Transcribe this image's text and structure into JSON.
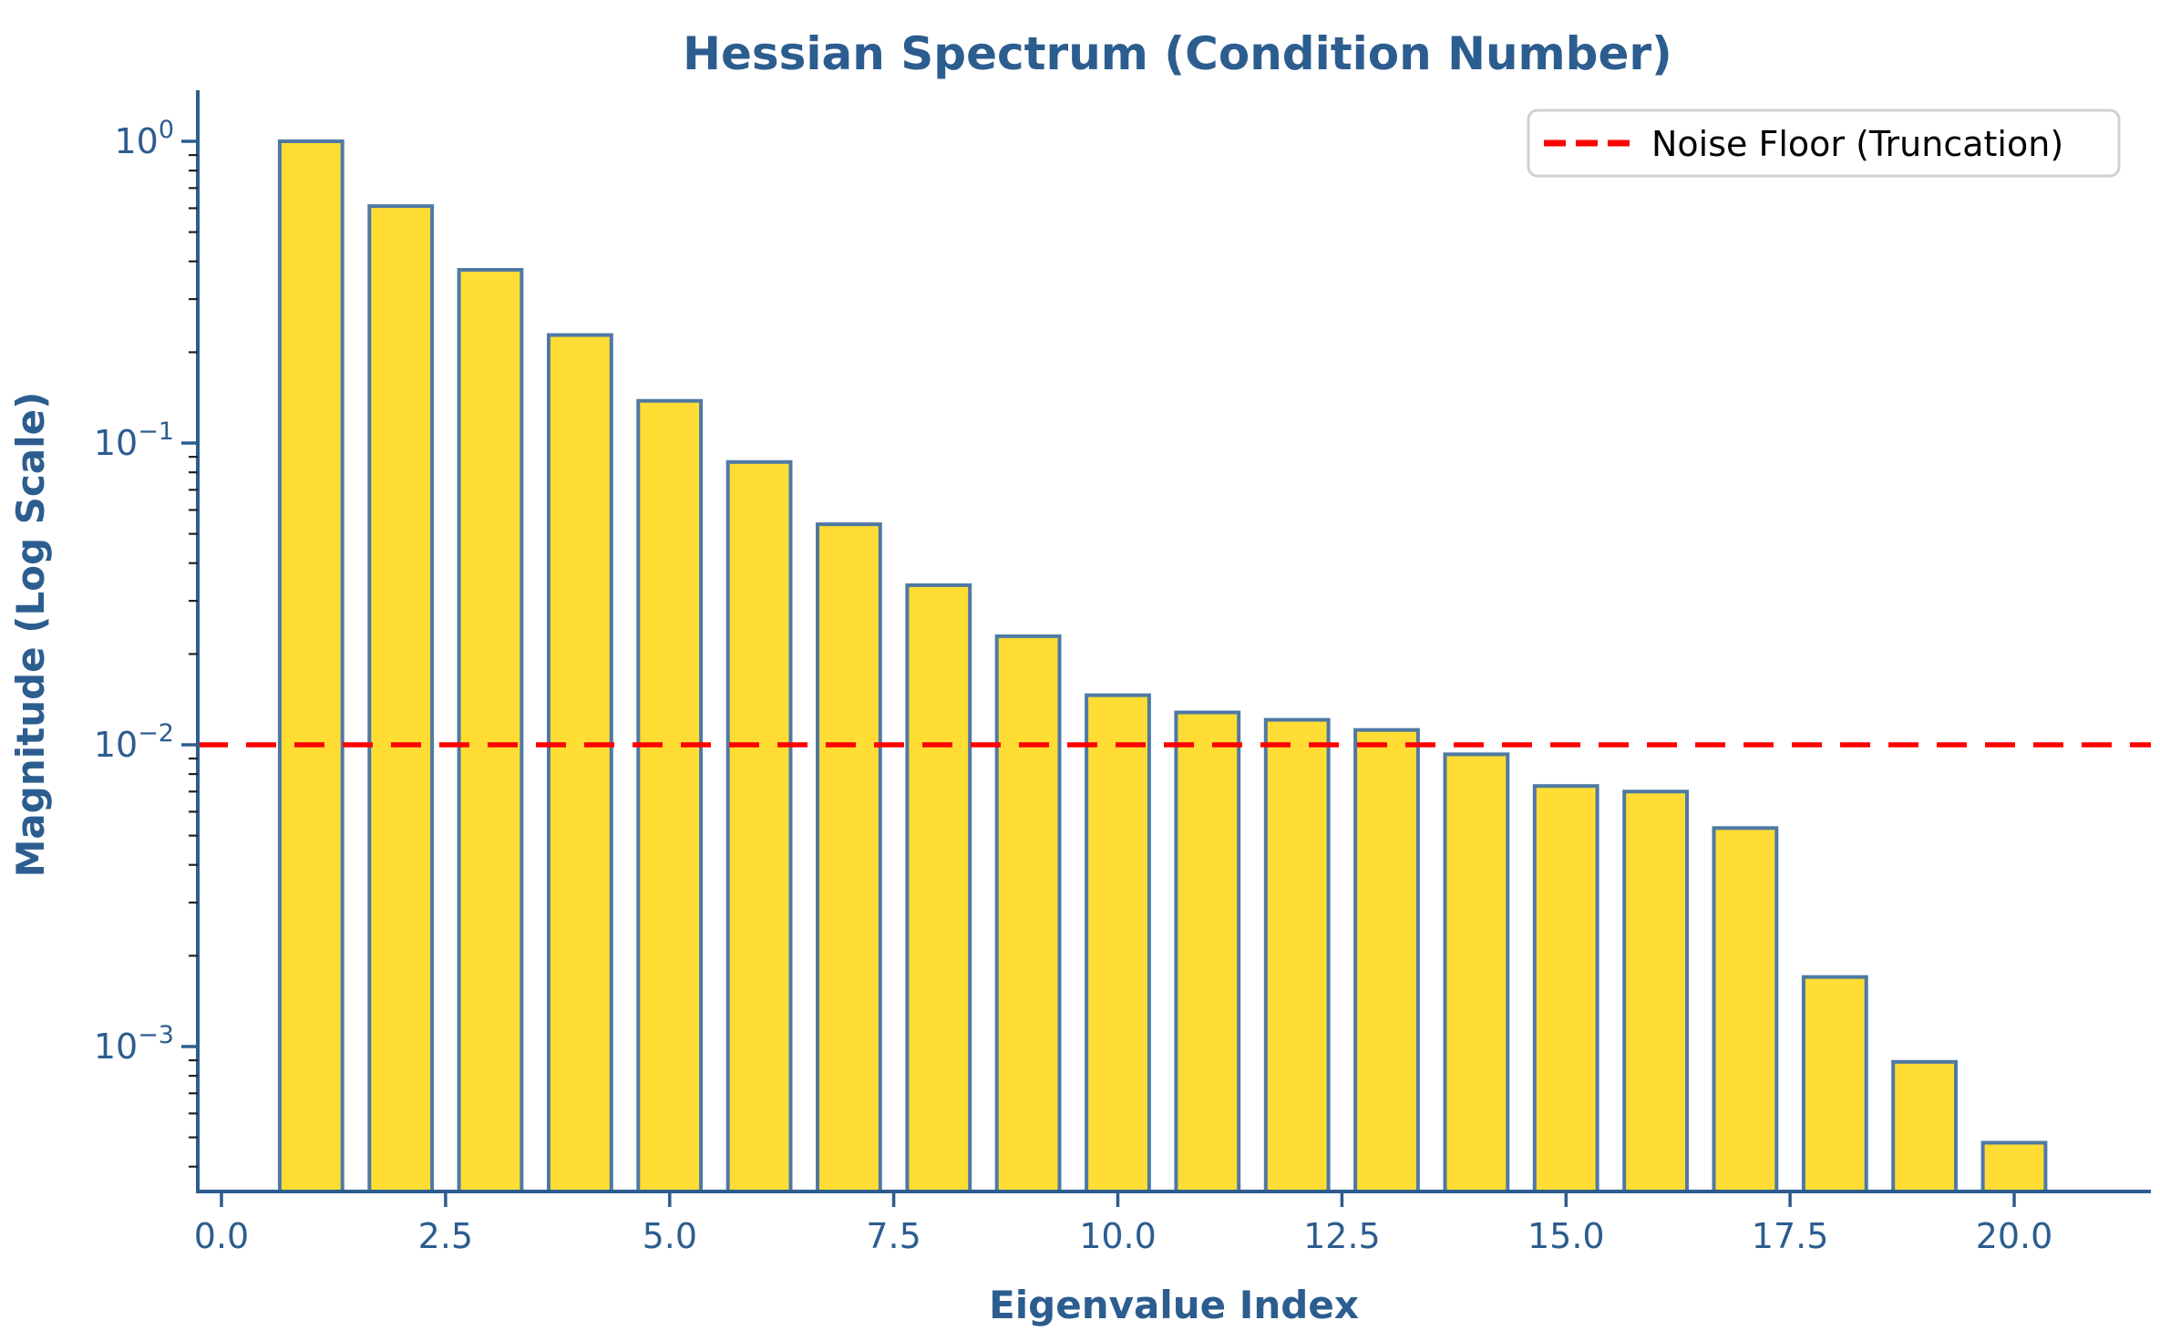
{
  "title": "Hessian Spectrum (Condition Number)",
  "colors": {
    "text_blue": "#2C5D8F",
    "axis_blue": "#2C5D8F",
    "minor_tick": "#222222",
    "bar_fill": "#FFDD35",
    "bar_edge": "#4E79A4",
    "noise_floor_red": "#FF0000",
    "legend_border": "#D0D0D0",
    "legend_text": "#000000",
    "background": "#FFFFFF"
  },
  "x_axis": {
    "label": "Eigenvalue Index",
    "tick_labels": [
      "0.0",
      "2.5",
      "5.0",
      "7.5",
      "10.0",
      "12.5",
      "15.0",
      "17.5",
      "20.0"
    ],
    "tick_values": [
      0,
      2.5,
      5,
      7.5,
      10,
      12.5,
      15,
      17.5,
      20
    ]
  },
  "y_axis": {
    "label": "Magnitude (Log Scale)",
    "scale": "log",
    "tick_exponents": [
      0,
      -1,
      -2,
      -3
    ],
    "tick_labels": [
      "10^0",
      "10^-1",
      "10^-2",
      "10^-3"
    ]
  },
  "legend": {
    "items": [
      {
        "label": "Noise Floor (Truncation)",
        "color": "#FF0000",
        "line_style": "dashed"
      }
    ],
    "position": "upper right"
  },
  "chart_data": {
    "type": "bar",
    "title": "Hessian Spectrum (Condition Number)",
    "xlabel": "Eigenvalue Index",
    "ylabel": "Magnitude (Log Scale)",
    "yscale": "log",
    "x": [
      1,
      2,
      3,
      4,
      5,
      6,
      7,
      8,
      9,
      10,
      11,
      12,
      13,
      14,
      15,
      16,
      17,
      18,
      19,
      20
    ],
    "values": [
      1.0,
      0.61,
      0.375,
      0.228,
      0.138,
      0.0865,
      0.0538,
      0.0338,
      0.0229,
      0.0146,
      0.0128,
      0.0121,
      0.0112,
      0.0093,
      0.0073,
      0.007,
      0.0053,
      0.0017,
      0.00089,
      0.00048
    ],
    "bar_width": 0.7,
    "xlim": [
      -0.3,
      21.5
    ],
    "ylim": [
      0.00033,
      1.48
    ],
    "x_ticks": [
      0,
      2.5,
      5,
      7.5,
      10,
      12.5,
      15,
      17.5,
      20
    ],
    "y_tick_decades": [
      0,
      -1,
      -2,
      -3
    ],
    "noise_floor": {
      "value": 0.01,
      "label": "Noise Floor (Truncation)"
    },
    "legend_position": "upper right",
    "grid": false
  }
}
